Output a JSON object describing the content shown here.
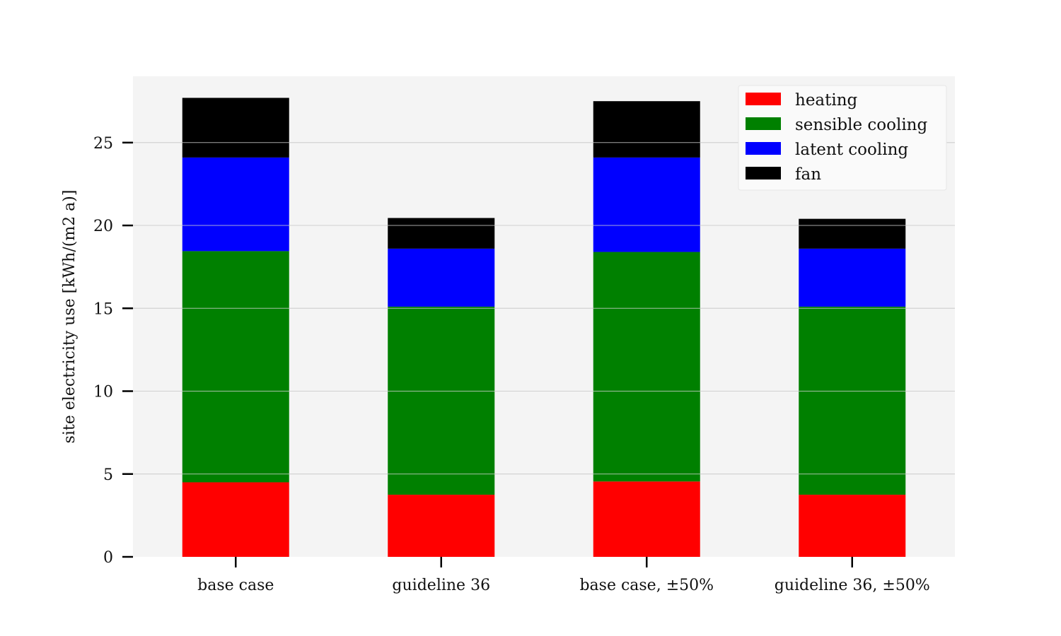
{
  "chart_data": {
    "type": "bar",
    "stacked": true,
    "categories": [
      "base case",
      "guideline 36",
      "base case, ±50%",
      "guideline 36, ±50%"
    ],
    "series": [
      {
        "name": "heating",
        "color": "#ff0000",
        "values": [
          4.5,
          3.75,
          4.55,
          3.75
        ]
      },
      {
        "name": "sensible cooling",
        "color": "#008000",
        "values": [
          13.95,
          11.35,
          13.85,
          11.35
        ]
      },
      {
        "name": "latent cooling",
        "color": "#0000ff",
        "values": [
          5.65,
          3.5,
          5.7,
          3.5
        ]
      },
      {
        "name": "fan",
        "color": "#000000",
        "values": [
          3.6,
          1.85,
          3.4,
          1.8
        ]
      }
    ],
    "xlabel": "",
    "ylabel": "site electricity use [kWh/(m2  a)]",
    "ylim": [
      0,
      29
    ],
    "yticks": [
      "0",
      "5",
      "10",
      "15",
      "20",
      "25"
    ],
    "grid": true,
    "legend_position": "top-right",
    "colors": {
      "plot_background": "#f4f4f4",
      "grid": "#d0d0d0"
    }
  }
}
